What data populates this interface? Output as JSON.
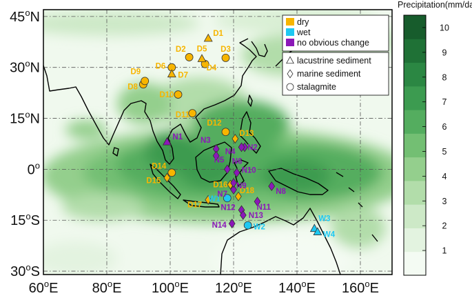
{
  "colorbar": {
    "title": "Precipitation(mm/day)",
    "min": 0,
    "max": 10.5,
    "ticks": [
      "1",
      "2",
      "3",
      "4",
      "5",
      "6",
      "7",
      "8",
      "9",
      "10"
    ],
    "colors": [
      "#f4fbf3",
      "#e3f3e0",
      "#cde9c7",
      "#b2ddaa",
      "#94cf8d",
      "#73bf73",
      "#54ad5f",
      "#3c9b50",
      "#2b8743",
      "#1f7136",
      "#175c2c"
    ]
  },
  "axes": {
    "lon_ticks": [
      {
        "deg": 60,
        "num": "60",
        "sup": "o",
        "hem": "E"
      },
      {
        "deg": 80,
        "num": "80",
        "sup": "o",
        "hem": "E"
      },
      {
        "deg": 100,
        "num": "100",
        "sup": "o",
        "hem": "E"
      },
      {
        "deg": 120,
        "num": "120",
        "sup": "o",
        "hem": "E"
      },
      {
        "deg": 140,
        "num": "140",
        "sup": "o",
        "hem": "E"
      },
      {
        "deg": 160,
        "num": "160",
        "sup": "o",
        "hem": "E"
      }
    ],
    "lat_ticks": [
      {
        "deg": 45,
        "num": "45",
        "sup": "o",
        "hem": "N"
      },
      {
        "deg": 30,
        "num": "30",
        "sup": "o",
        "hem": "N"
      },
      {
        "deg": 15,
        "num": "15",
        "sup": "o",
        "hem": "N"
      },
      {
        "deg": 0,
        "num": "0",
        "sup": "o",
        "hem": ""
      },
      {
        "deg": -15,
        "num": "15",
        "sup": "o",
        "hem": "S"
      },
      {
        "deg": -30,
        "num": "30",
        "sup": "o",
        "hem": "S"
      }
    ],
    "lon_range": [
      60,
      170
    ],
    "lat_range": [
      -31,
      47
    ]
  },
  "legend": {
    "categories": [
      {
        "label": "dry",
        "color": "#f7b500"
      },
      {
        "label": "wet",
        "color": "#1ec8f2"
      },
      {
        "label": "no obvious change",
        "color": "#8b18b8"
      }
    ],
    "shapes": [
      {
        "label": "lacustrine sediment",
        "shape": "triangle"
      },
      {
        "label": "marine sediment",
        "shape": "diamond"
      },
      {
        "label": "stalagmite",
        "shape": "circle"
      }
    ]
  },
  "sites": [
    {
      "label": "D1",
      "lon": 112,
      "lat": 38.5,
      "shape": "triangle",
      "cat": "dry"
    },
    {
      "label": "D2",
      "lon": 106,
      "lat": 33,
      "shape": "circle",
      "cat": "dry"
    },
    {
      "label": "D3",
      "lon": 117.5,
      "lat": 32.8,
      "shape": "circle",
      "cat": "dry"
    },
    {
      "label": "D4",
      "lon": 111,
      "lat": 31,
      "shape": "circle",
      "cat": "dry"
    },
    {
      "label": "D5",
      "lon": 110,
      "lat": 32.5,
      "shape": "triangle",
      "cat": "dry"
    },
    {
      "label": "D6",
      "lon": 100.5,
      "lat": 30,
      "shape": "circle",
      "cat": "dry"
    },
    {
      "label": "D7",
      "lon": 100.5,
      "lat": 28,
      "shape": "triangle",
      "cat": "dry"
    },
    {
      "label": "D8",
      "lon": 91.5,
      "lat": 25,
      "shape": "circle",
      "cat": "dry"
    },
    {
      "label": "D9",
      "lon": 92,
      "lat": 26,
      "shape": "circle",
      "cat": "dry"
    },
    {
      "label": "D10",
      "lon": 102.5,
      "lat": 22,
      "shape": "circle",
      "cat": "dry"
    },
    {
      "label": "D11",
      "lon": 107,
      "lat": 16.5,
      "shape": "circle",
      "cat": "dry"
    },
    {
      "label": "D12",
      "lon": 117.5,
      "lat": 11,
      "shape": "circle",
      "cat": "dry"
    },
    {
      "label": "D13",
      "lon": 120.5,
      "lat": 9,
      "shape": "diamond",
      "cat": "dry"
    },
    {
      "label": "D14",
      "lon": 100.5,
      "lat": -1,
      "shape": "circle",
      "cat": "dry"
    },
    {
      "label": "D15",
      "lon": 99,
      "lat": -2.5,
      "shape": "diamond",
      "cat": "dry"
    },
    {
      "label": "D16",
      "lon": 119,
      "lat": -4.5,
      "shape": "diamond",
      "cat": "dry"
    },
    {
      "label": "D17",
      "lon": 112,
      "lat": -9,
      "shape": "diamond",
      "cat": "dry"
    },
    {
      "label": "D18",
      "lon": 121.5,
      "lat": -8,
      "shape": "diamond",
      "cat": "dry"
    },
    {
      "label": "W1",
      "lon": 118,
      "lat": -8.5,
      "shape": "circle",
      "cat": "wet"
    },
    {
      "label": "W2",
      "lon": 124.5,
      "lat": -16.5,
      "shape": "circle",
      "cat": "wet"
    },
    {
      "label": "W3",
      "lon": 145.5,
      "lat": -17.5,
      "shape": "triangle",
      "cat": "wet"
    },
    {
      "label": "W4",
      "lon": 146.5,
      "lat": -18.5,
      "shape": "triangle",
      "cat": "wet"
    },
    {
      "label": "N1",
      "lon": 99,
      "lat": 8,
      "shape": "triangle",
      "cat": "none"
    },
    {
      "label": "N2",
      "lon": 123.5,
      "lat": 6.5,
      "shape": "diamond",
      "cat": "none"
    },
    {
      "label": "N3",
      "lon": 114.5,
      "lat": 6,
      "shape": "diamond",
      "cat": "none"
    },
    {
      "label": "N4",
      "lon": 122.5,
      "lat": 6.5,
      "shape": "diamond",
      "cat": "none"
    },
    {
      "label": "N5",
      "lon": 114.5,
      "lat": 4,
      "shape": "diamond",
      "cat": "none"
    },
    {
      "label": "N6",
      "lon": 118,
      "lat": 0,
      "shape": "diamond",
      "cat": "none"
    },
    {
      "label": "N7",
      "lon": 120,
      "lat": -6,
      "shape": "diamond",
      "cat": "none"
    },
    {
      "label": "N8",
      "lon": 132,
      "lat": -5,
      "shape": "diamond",
      "cat": "none"
    },
    {
      "label": "N9",
      "lon": 120,
      "lat": -4,
      "shape": "diamond",
      "cat": "none"
    },
    {
      "label": "N10",
      "lon": 121,
      "lat": -1,
      "shape": "diamond",
      "cat": "none"
    },
    {
      "label": "N11",
      "lon": 127.5,
      "lat": -9.5,
      "shape": "diamond",
      "cat": "none"
    },
    {
      "label": "N12",
      "lon": 122.5,
      "lat": -12,
      "shape": "diamond",
      "cat": "none"
    },
    {
      "label": "N13",
      "lon": 123,
      "lat": -13.5,
      "shape": "diamond",
      "cat": "none"
    },
    {
      "label": "N14",
      "lon": 119.5,
      "lat": -16,
      "shape": "diamond",
      "cat": "none"
    }
  ]
}
